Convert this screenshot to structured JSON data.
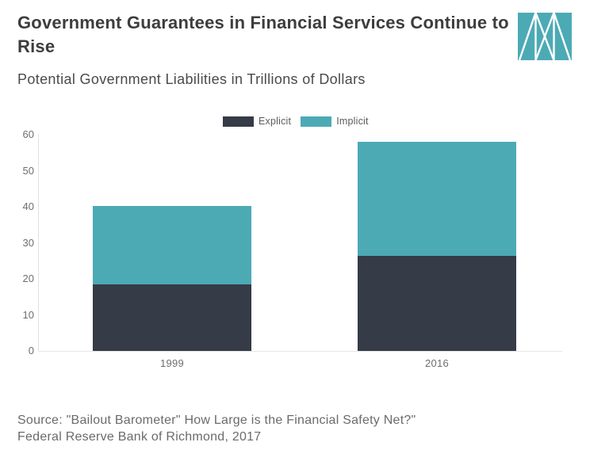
{
  "header": {
    "title": "Government Guarantees in Financial Services Continue to Rise",
    "subtitle": "Potential Government Liabilities in Trillions of Dollars"
  },
  "logo": {
    "background_color": "#4CAAB5",
    "line_color": "#ffffff"
  },
  "chart_data": {
    "type": "bar",
    "stacked": true,
    "title": "Government Guarantees in Financial Services Continue to Rise",
    "subtitle": "Potential Government Liabilities in Trillions of Dollars",
    "xlabel": "",
    "ylabel": "",
    "categories": [
      "1999",
      "2016"
    ],
    "series": [
      {
        "name": "Explicit",
        "color": "#353B47",
        "values": [
          18.4,
          26.4
        ]
      },
      {
        "name": "Implicit",
        "color": "#4CAAB5",
        "values": [
          21.8,
          31.6
        ]
      }
    ],
    "totals": [
      40.2,
      58.0
    ],
    "ylim": [
      0,
      60
    ],
    "yticks": [
      0,
      10,
      20,
      30,
      40,
      50,
      60
    ],
    "grid": false,
    "legend_position": "top-center"
  },
  "source": {
    "line1": "Source: \"Bailout Barometer\" How Large is the Financial Safety Net?\"",
    "line2": "Federal Reserve Bank of Richmond, 2017"
  }
}
